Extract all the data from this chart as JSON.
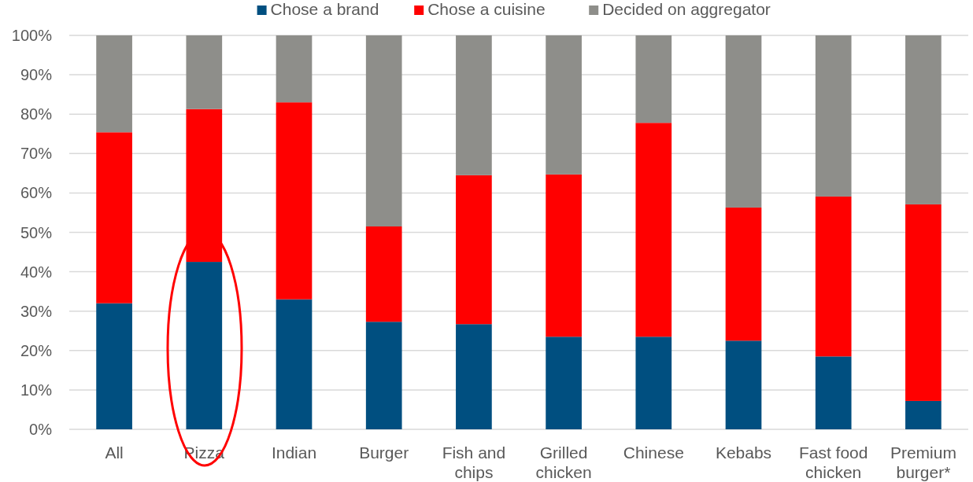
{
  "chart_data": {
    "type": "bar",
    "stacked": true,
    "categories": [
      "All",
      "Pizza",
      "Indian",
      "Burger",
      "Fish and chips",
      "Grilled chicken",
      "Chinese",
      "Kebabs",
      "Fast food chicken",
      "Premium burger*"
    ],
    "series": [
      {
        "name": "Chose a brand",
        "color": "#004f80",
        "values": [
          32,
          42.5,
          33,
          27.3,
          26.7,
          23.5,
          23.5,
          22.5,
          18.5,
          7.2
        ]
      },
      {
        "name": "Chose a cuisine",
        "color": "#ff0000",
        "values": [
          43.4,
          38.8,
          50,
          24.2,
          37.8,
          41.2,
          54.3,
          33.8,
          40.6,
          49.9
        ]
      },
      {
        "name": "Decided on aggregator",
        "color": "#8e8e8a",
        "values": [
          24.6,
          18.7,
          17,
          48.5,
          35.5,
          35.3,
          22.2,
          43.7,
          40.9,
          42.9
        ]
      }
    ],
    "ylim": [
      0,
      100
    ],
    "yticks": [
      {
        "value": 0,
        "label": "0%"
      },
      {
        "value": 10,
        "label": "10%"
      },
      {
        "value": 20,
        "label": "20%"
      },
      {
        "value": 30,
        "label": "30%"
      },
      {
        "value": 40,
        "label": "40%"
      },
      {
        "value": 50,
        "label": "50%"
      },
      {
        "value": 60,
        "label": "60%"
      },
      {
        "value": 70,
        "label": "70%"
      },
      {
        "value": 80,
        "label": "80%"
      },
      {
        "value": 90,
        "label": "90%"
      },
      {
        "value": 100,
        "label": "100%"
      }
    ],
    "grid": "y",
    "legend": "top"
  }
}
